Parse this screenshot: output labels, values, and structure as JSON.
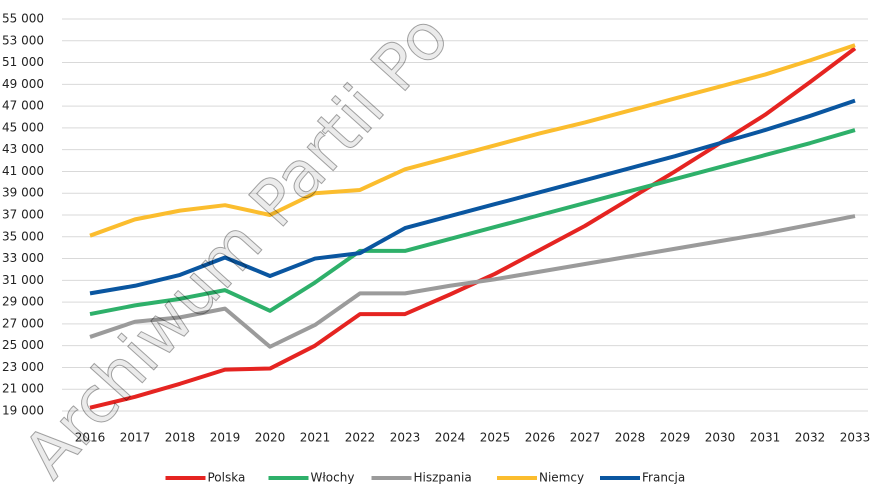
{
  "chart_data": {
    "type": "line",
    "watermark": "Archiwum Partii Po",
    "categories": [
      "2016",
      "2017",
      "2018",
      "2019",
      "2020",
      "2021",
      "2022",
      "2023",
      "2024",
      "2025",
      "2026",
      "2027",
      "2028",
      "2029",
      "2030",
      "2031",
      "2032",
      "2033"
    ],
    "series": [
      {
        "name": "Polska",
        "color": "#e52421",
        "values": [
          19300,
          20300,
          21500,
          22800,
          22900,
          25000,
          27900,
          27900,
          29700,
          31600,
          33800,
          36000,
          38500,
          41000,
          43600,
          46200,
          49200,
          52300
        ]
      },
      {
        "name": "Włochy",
        "color": "#2eb06a",
        "values": [
          27900,
          28700,
          29300,
          30100,
          28200,
          30800,
          33700,
          33700,
          34800,
          35900,
          37000,
          38100,
          39200,
          40300,
          41400,
          42500,
          43600,
          44800
        ]
      },
      {
        "name": "Hiszpania",
        "color": "#9b9b9b",
        "values": [
          25800,
          27200,
          27600,
          28400,
          24900,
          26900,
          29800,
          29800,
          30500,
          31100,
          31800,
          32500,
          33200,
          33900,
          34600,
          35300,
          36100,
          36900
        ]
      },
      {
        "name": "Niemcy",
        "color": "#fbbd2e",
        "values": [
          35100,
          36600,
          37400,
          37900,
          37000,
          39000,
          39300,
          41200,
          42300,
          43400,
          44500,
          45500,
          46600,
          47700,
          48800,
          49900,
          51200,
          52600
        ]
      },
      {
        "name": "Francja",
        "color": "#0a56a0",
        "values": [
          29800,
          30500,
          31500,
          33100,
          31400,
          33000,
          33500,
          35800,
          36900,
          38000,
          39100,
          40200,
          41300,
          42400,
          43600,
          44800,
          46100,
          47500
        ]
      }
    ],
    "ylim": [
      19000,
      55000
    ],
    "yticks": [
      {
        "value": 19000,
        "label": "19 000"
      },
      {
        "value": 21000,
        "label": "21 000"
      },
      {
        "value": 23000,
        "label": "23 000"
      },
      {
        "value": 25000,
        "label": "25 000"
      },
      {
        "value": 27000,
        "label": "27 000"
      },
      {
        "value": 29000,
        "label": "29 000"
      },
      {
        "value": 31000,
        "label": "31 000"
      },
      {
        "value": 33000,
        "label": "33 000"
      },
      {
        "value": 35000,
        "label": "35 000"
      },
      {
        "value": 37000,
        "label": "37 000"
      },
      {
        "value": 39000,
        "label": "39 000"
      },
      {
        "value": 41000,
        "label": "41 000"
      },
      {
        "value": 43000,
        "label": "43 000"
      },
      {
        "value": 45000,
        "label": "45 000"
      },
      {
        "value": 47000,
        "label": "47 000"
      },
      {
        "value": 49000,
        "label": "49 000"
      },
      {
        "value": 51000,
        "label": "51 000"
      },
      {
        "value": 53000,
        "label": "53 000"
      },
      {
        "value": 55000,
        "label": "55 000"
      }
    ],
    "grid": true,
    "legend": "bottom"
  }
}
